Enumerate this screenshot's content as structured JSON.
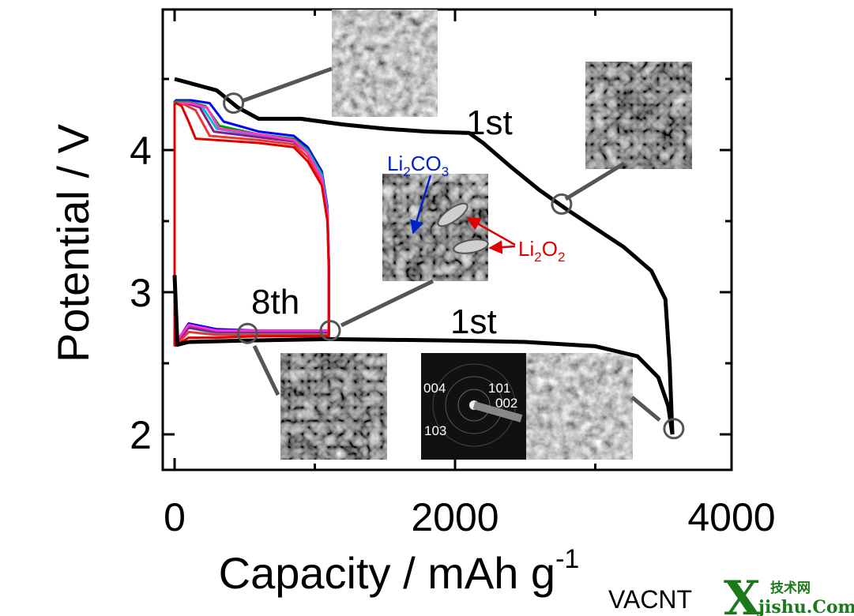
{
  "chart_data": {
    "type": "line",
    "title": "",
    "xlabel": "Capacity / mAh g",
    "xlabel_superscript": "-1",
    "ylabel": "Potential / V",
    "xlim": [
      -50,
      4000
    ],
    "ylim": [
      1.75,
      4.95
    ],
    "xticks": [
      "0",
      "2000",
      "4000"
    ],
    "xtick_values": [
      0,
      2000,
      4000
    ],
    "yticks": [
      "2",
      "3",
      "4"
    ],
    "ytick_values": [
      2,
      3,
      4
    ],
    "grid": false,
    "series": [
      {
        "color": "#000000",
        "x": [
          0,
          300,
          450,
          600,
          900,
          1200,
          1500,
          1800,
          2100,
          2200,
          2400,
          2600,
          2800,
          3000,
          3200,
          3400,
          3500,
          3530,
          3550
        ],
        "y": [
          4.5,
          4.42,
          4.3,
          4.22,
          4.22,
          4.18,
          4.15,
          4.13,
          4.12,
          4.05,
          3.88,
          3.72,
          3.58,
          3.45,
          3.32,
          3.15,
          2.95,
          2.5,
          2.0
        ]
      },
      {
        "color": "#000000",
        "x": [
          0,
          20,
          100,
          500,
          1100,
          2000,
          2500,
          3000,
          3300,
          3450,
          3520,
          3550
        ],
        "y": [
          3.12,
          2.63,
          2.65,
          2.66,
          2.67,
          2.66,
          2.65,
          2.62,
          2.55,
          2.4,
          2.2,
          2.0
        ]
      },
      {
        "color": "#0000ff",
        "x": [
          0,
          100,
          300,
          600,
          900,
          1000,
          1070,
          1100,
          1100,
          1090,
          1050,
          950,
          850,
          600,
          350,
          250,
          120,
          50,
          10,
          0,
          0
        ],
        "y": [
          2.63,
          2.78,
          2.74,
          2.73,
          2.73,
          2.73,
          2.73,
          2.73,
          3.2,
          3.6,
          3.85,
          4.02,
          4.1,
          4.13,
          4.2,
          4.33,
          4.35,
          4.35,
          4.35,
          4.34,
          2.63
        ]
      },
      {
        "color": "#00a000",
        "x": [
          0,
          100,
          300,
          600,
          900,
          1000,
          1070,
          1100,
          1100,
          1090,
          1050,
          950,
          850,
          600,
          320,
          220,
          100,
          40,
          5,
          0,
          0
        ],
        "y": [
          2.63,
          2.76,
          2.72,
          2.72,
          2.72,
          2.72,
          2.72,
          2.72,
          3.2,
          3.58,
          3.83,
          4.0,
          4.08,
          4.11,
          4.17,
          4.31,
          4.34,
          4.34,
          4.34,
          4.33,
          2.63
        ]
      },
      {
        "color": "#00bcd4",
        "x": [
          0,
          100,
          300,
          600,
          900,
          1000,
          1070,
          1100,
          1100,
          1090,
          1050,
          950,
          850,
          600,
          300,
          200,
          90,
          40,
          5,
          0,
          0
        ],
        "y": [
          2.63,
          2.75,
          2.71,
          2.71,
          2.71,
          2.71,
          2.71,
          2.71,
          3.2,
          3.58,
          3.82,
          3.99,
          4.07,
          4.1,
          4.15,
          4.3,
          4.33,
          4.33,
          4.33,
          4.32,
          2.63
        ]
      },
      {
        "color": "#8b1a8b",
        "x": [
          0,
          100,
          300,
          600,
          900,
          1000,
          1070,
          1100,
          1100,
          1090,
          1050,
          950,
          850,
          600,
          280,
          180,
          80,
          30,
          5,
          0,
          0
        ],
        "y": [
          2.63,
          2.75,
          2.72,
          2.72,
          2.72,
          2.72,
          2.72,
          2.72,
          3.2,
          3.56,
          3.8,
          3.98,
          4.06,
          4.09,
          4.13,
          4.3,
          4.33,
          4.33,
          4.33,
          4.32,
          2.63
        ]
      },
      {
        "color": "#e53935",
        "x": [
          0,
          100,
          300,
          600,
          900,
          1000,
          1070,
          1100,
          1100,
          1090,
          1050,
          950,
          850,
          600,
          250,
          150,
          70,
          20,
          5,
          0,
          0
        ],
        "y": [
          2.62,
          2.72,
          2.7,
          2.7,
          2.7,
          2.7,
          2.7,
          2.7,
          3.15,
          3.52,
          3.78,
          3.95,
          4.04,
          4.07,
          4.1,
          4.28,
          4.32,
          4.33,
          4.33,
          4.32,
          2.62
        ]
      },
      {
        "color": "#ff33cc",
        "x": [
          0,
          100,
          300,
          600,
          900,
          1000,
          1070,
          1100,
          1100,
          1090,
          1050,
          950,
          850,
          600,
          320,
          230,
          110,
          40,
          5,
          0,
          0
        ],
        "y": [
          2.64,
          2.77,
          2.73,
          2.73,
          2.73,
          2.73,
          2.73,
          2.73,
          3.2,
          3.55,
          3.8,
          3.98,
          4.07,
          4.11,
          4.15,
          4.3,
          4.33,
          4.33,
          4.33,
          4.32,
          2.64
        ]
      },
      {
        "color": "#e00000",
        "x": [
          0,
          100,
          300,
          600,
          900,
          1000,
          1070,
          1100,
          1100,
          1090,
          1050,
          950,
          850,
          600,
          150,
          100,
          50,
          10,
          0,
          0
        ],
        "y": [
          2.62,
          2.68,
          2.68,
          2.69,
          2.69,
          2.69,
          2.69,
          2.69,
          3.15,
          3.5,
          3.75,
          3.92,
          4.02,
          4.05,
          4.08,
          4.2,
          4.31,
          4.33,
          4.32,
          2.62
        ]
      }
    ],
    "annotations": [
      {
        "text": "1st",
        "x": 2300,
        "y": 4.2
      },
      {
        "text": "1st",
        "x": 2200,
        "y": 2.82
      },
      {
        "text": "8th",
        "x": 760,
        "y": 2.96
      }
    ],
    "markers": [
      {
        "x": 420,
        "y": 4.33
      },
      {
        "x": 2760,
        "y": 3.62
      },
      {
        "x": 1110,
        "y": 2.73
      },
      {
        "x": 520,
        "y": 2.71
      },
      {
        "x": 3560,
        "y": 2.04
      }
    ],
    "chem_labels": [
      {
        "id": "li2co3",
        "base": [
          "Li",
          "CO"
        ],
        "subs": [
          "2",
          "3"
        ],
        "color": "#0022cc"
      },
      {
        "id": "li2o2",
        "base": [
          "Li",
          "O"
        ],
        "subs": [
          "2",
          "2"
        ],
        "color": "#e00000"
      }
    ],
    "saed_labels": [
      "004",
      "101",
      "002",
      "103"
    ]
  },
  "footer": {
    "vacnt": "VACNT",
    "wm_cn": "技术网",
    "wm_x": "X",
    "wm_url": "jishu.Com"
  }
}
